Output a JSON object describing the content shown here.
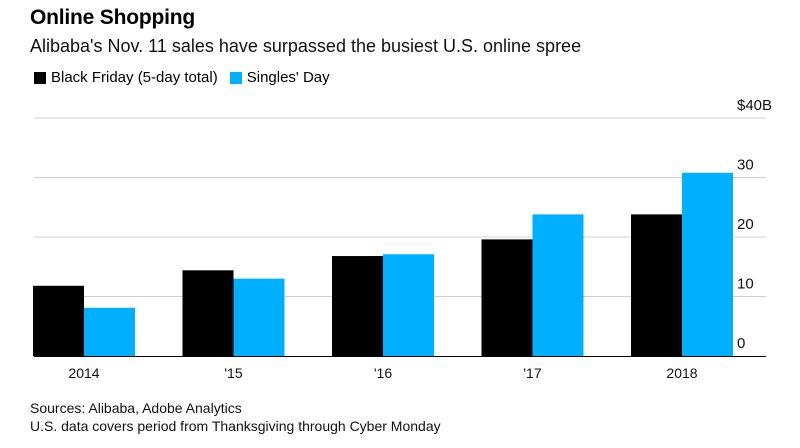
{
  "title": "Online Shopping",
  "subtitle": "Alibaba's Nov. 11 sales have surpassed the busiest U.S. online spree",
  "colors": {
    "black_friday": "#000000",
    "singles_day": "#00b0ff",
    "grid": "#cfcfcf"
  },
  "chart_data": {
    "type": "bar",
    "categories": [
      "2014",
      "'15",
      "'16",
      "'17",
      "2018"
    ],
    "series": [
      {
        "name": "Black Friday (5-day total)",
        "values": [
          11.8,
          14.4,
          16.8,
          19.6,
          23.8
        ]
      },
      {
        "name": "Singles' Day",
        "values": [
          8.1,
          13.0,
          17.1,
          23.8,
          30.8
        ]
      }
    ],
    "ylim": [
      0,
      40
    ],
    "yticks": [
      {
        "value": 40,
        "label": "$40B"
      },
      {
        "value": 30,
        "label": "30"
      },
      {
        "value": 20,
        "label": "20"
      },
      {
        "value": 10,
        "label": "10"
      },
      {
        "value": 0,
        "label": "0"
      }
    ],
    "grid": true,
    "legend": "top-left"
  },
  "footnote": {
    "sources": "Sources: Alibaba, Adobe Analytics",
    "note": "U.S. data covers period from Thanksgiving through Cyber Monday"
  }
}
